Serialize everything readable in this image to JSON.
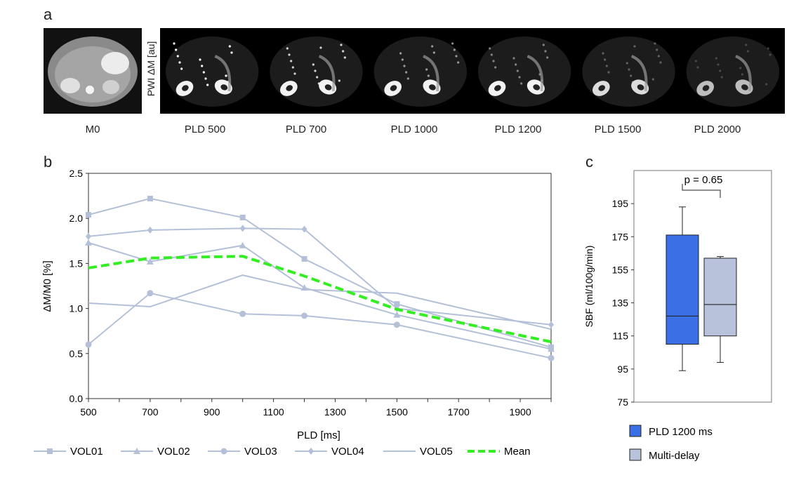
{
  "panel_a": {
    "letter": "a",
    "pwi_label": "PWI ΔM [au]",
    "m0_label": "M0",
    "pld_labels": [
      "PLD 500",
      "PLD 700",
      "PLD 1000",
      "PLD 1200",
      "PLD 1500",
      "PLD 2000"
    ]
  },
  "chart_data": [
    {
      "panel": "b",
      "type": "line",
      "xlabel": "PLD [ms]",
      "ylabel": "ΔM/M0 [%]",
      "xlim": [
        500,
        2000
      ],
      "ylim": [
        0,
        2.5
      ],
      "x_ticks": [
        500,
        700,
        900,
        1100,
        1300,
        1500,
        1700,
        1900
      ],
      "y_ticks": [
        "0.0",
        "0.5",
        "1.0",
        "1.5",
        "2.0",
        "2.5"
      ],
      "x": [
        500,
        700,
        1000,
        1200,
        1500,
        2000
      ],
      "series": [
        {
          "name": "VOL01",
          "marker": "square",
          "values": [
            2.04,
            2.22,
            2.01,
            1.55,
            1.05,
            0.57
          ]
        },
        {
          "name": "VOL02",
          "marker": "triangle",
          "values": [
            1.73,
            1.52,
            1.7,
            1.23,
            0.93,
            0.55
          ]
        },
        {
          "name": "VOL03",
          "marker": "circle",
          "values": [
            0.6,
            1.17,
            0.94,
            0.92,
            0.82,
            0.45
          ]
        },
        {
          "name": "VOL04",
          "marker": "diamond",
          "values": [
            1.8,
            1.87,
            1.89,
            1.88,
            1.0,
            0.82
          ]
        },
        {
          "name": "VOL05",
          "marker": "none",
          "values": [
            1.06,
            1.02,
            1.37,
            1.21,
            1.17,
            0.77
          ]
        },
        {
          "name": "Mean",
          "marker": "none",
          "style": "dashed",
          "values": [
            1.45,
            1.56,
            1.58,
            1.36,
            0.99,
            0.63
          ]
        }
      ],
      "colors": {
        "volunteer": "#b4c0d8",
        "mean": "#33ee22"
      }
    },
    {
      "panel": "c",
      "type": "box",
      "ylabel": "SBF (ml/100g/min)",
      "ylim": [
        75,
        215
      ],
      "y_ticks": [
        75,
        95,
        115,
        135,
        155,
        175,
        195
      ],
      "annotation": "p = 0.65",
      "boxes": [
        {
          "name": "PLD 1200 ms",
          "min": 94,
          "q1": 110,
          "median": 127,
          "q3": 176,
          "max": 193,
          "color": "#3a6fe6"
        },
        {
          "name": "Multi-delay",
          "min": 99,
          "q1": 115,
          "median": 134,
          "q3": 162,
          "max": 163,
          "color": "#b8c2da"
        }
      ]
    }
  ]
}
